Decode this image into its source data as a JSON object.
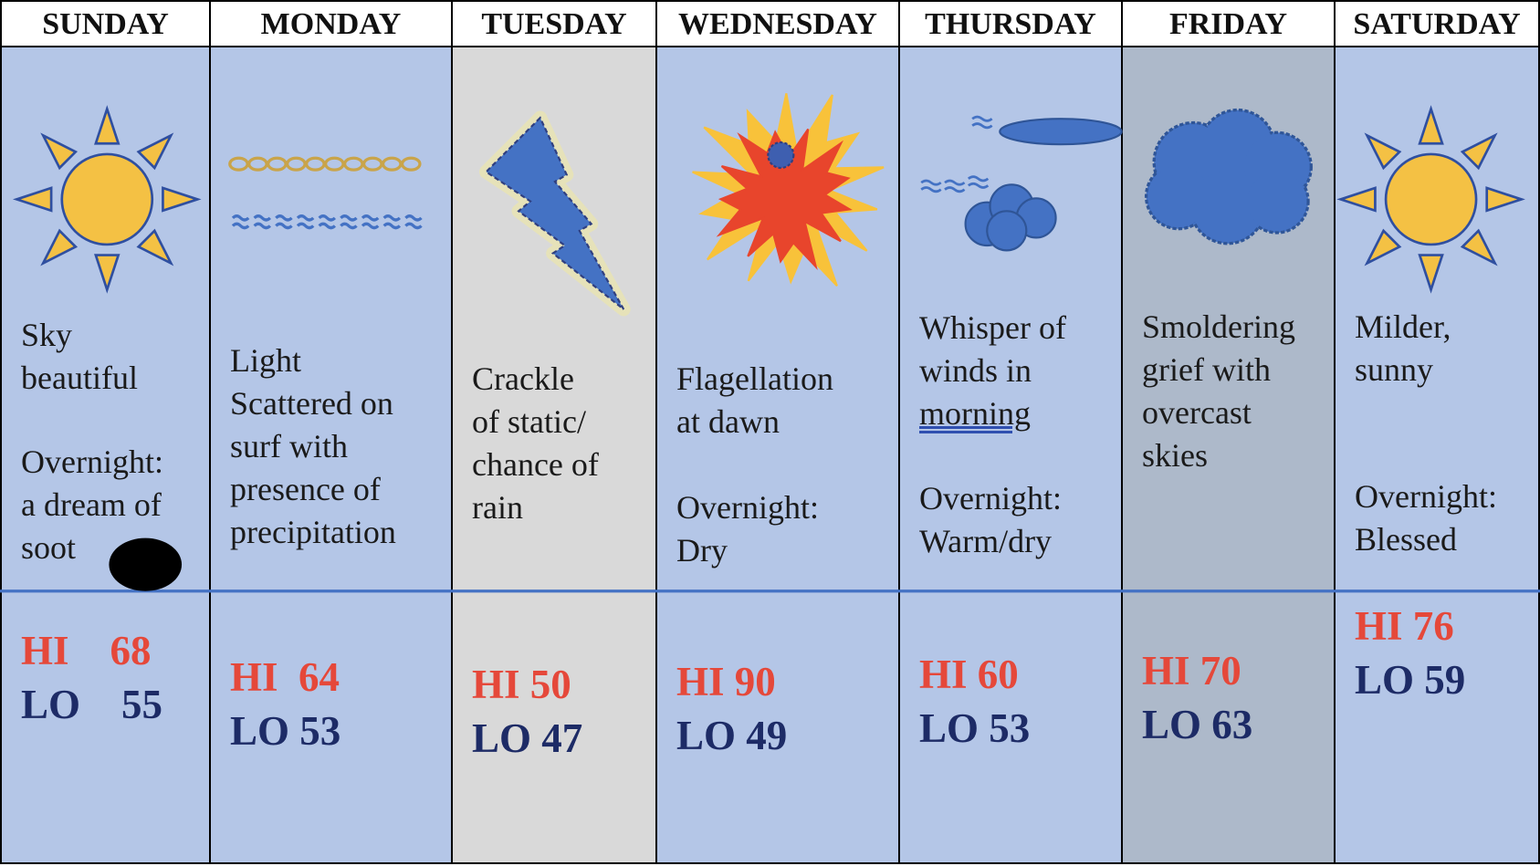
{
  "days": [
    {
      "name": "SUNDAY",
      "forecast": [
        "Sky",
        "beautiful"
      ],
      "overnight": [
        "Overnight:",
        "a dream of",
        "soot"
      ],
      "hi": "HI    68",
      "lo": "LO    55"
    },
    {
      "name": "MONDAY",
      "forecast": [
        "Light",
        "Scattered on",
        "surf with",
        "presence of",
        "precipitation"
      ],
      "hi": "HI  64",
      "lo": "LO 53"
    },
    {
      "name": "TUESDAY",
      "forecast": [
        "Crackle",
        "of static/",
        "chance of",
        "rain"
      ],
      "hi": "HI 50",
      "lo": "LO 47"
    },
    {
      "name": "WEDNESDAY",
      "forecast": [
        "Flagellation",
        "at dawn"
      ],
      "overnight": [
        "Overnight:",
        "Dry"
      ],
      "hi": "HI 90",
      "lo": "LO 49"
    },
    {
      "name": "THURSDAY",
      "forecast": [
        "Whisper of",
        "winds in",
        "morning"
      ],
      "overnight": [
        "Overnight:",
        "Warm/dry"
      ],
      "hi": "HI 60",
      "lo": "LO 53"
    },
    {
      "name": "FRIDAY",
      "forecast": [
        "Smoldering",
        "grief with",
        "overcast",
        "skies"
      ],
      "hi": "HI 70",
      "lo": "LO 63"
    },
    {
      "name": "SATURDAY",
      "forecast": [
        "Milder,",
        "sunny"
      ],
      "overnight": [
        "Overnight:",
        "Blessed"
      ],
      "hi": "HI 76",
      "lo": "LO 59"
    }
  ]
}
